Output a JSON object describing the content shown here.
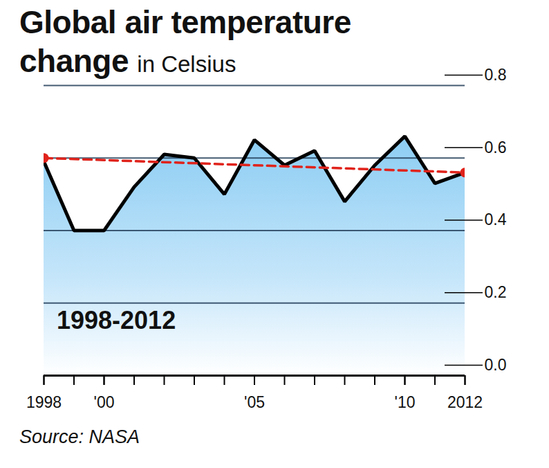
{
  "chart_data": {
    "type": "line",
    "title": "Global air temperature change",
    "subtitle": "in Celsius",
    "annotation": "1998-2012",
    "caption": "Source: NASA",
    "x": [
      1998,
      1999,
      2000,
      2001,
      2002,
      2003,
      2004,
      2005,
      2006,
      2007,
      2008,
      2009,
      2010,
      2011,
      2012
    ],
    "series": [
      {
        "type": "area",
        "color": "#000000",
        "values": [
          0.59,
          0.4,
          0.4,
          0.52,
          0.61,
          0.6,
          0.5,
          0.65,
          0.58,
          0.62,
          0.48,
          0.58,
          0.66,
          0.53,
          0.56
        ]
      },
      {
        "type": "line",
        "color": "#e0231b",
        "line_style": "dashed",
        "marker": "circle",
        "x": [
          1998,
          2012
        ],
        "values": [
          0.6,
          0.56
        ]
      }
    ],
    "xlim": [
      1998,
      2012
    ],
    "xticks": [
      1998,
      {
        "value": 2000,
        "label": "'00"
      },
      {
        "value": 2005,
        "label": "'05"
      },
      {
        "value": 2010,
        "label": "'10"
      },
      2012
    ],
    "ylim": [
      0,
      0.8
    ],
    "yticks": [
      {
        "value": 0,
        "label": "0.0"
      },
      0.2,
      0.4,
      0.6,
      0.8
    ],
    "grid": true
  }
}
